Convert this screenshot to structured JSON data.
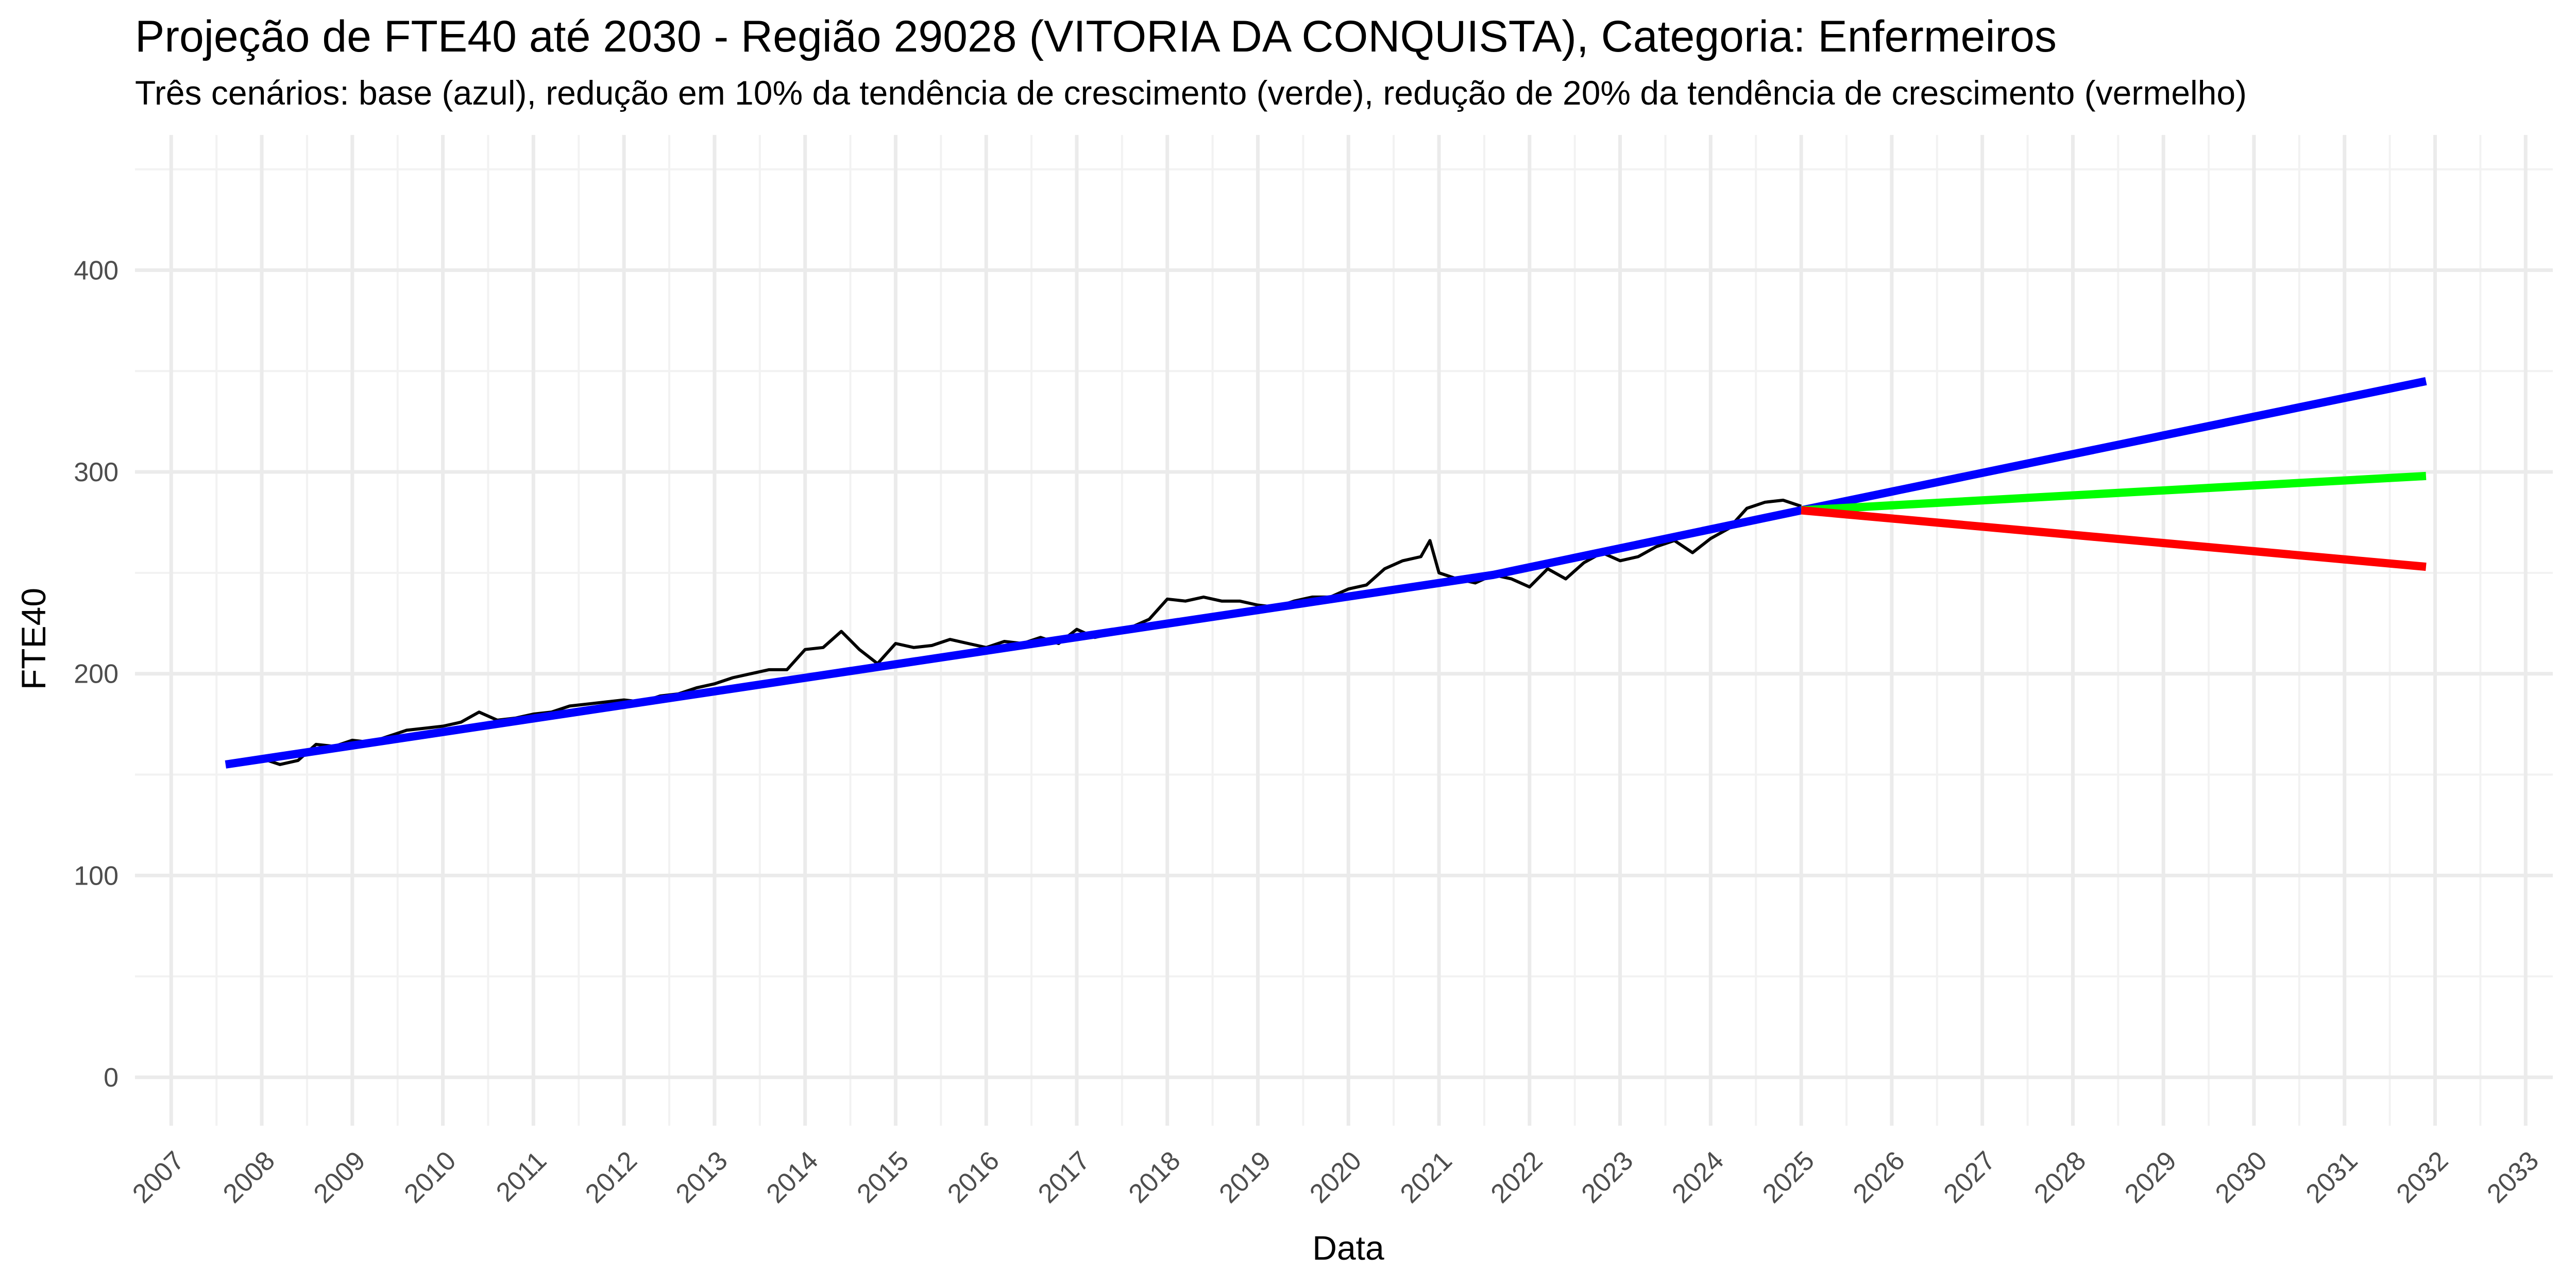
{
  "chart_data": {
    "type": "line",
    "title": "Projeção de FTE40 até 2030 - Região 29028 (VITORIA DA CONQUISTA), Categoria: Enfermeiros",
    "subtitle": "Três cenários: base (azul), redução em 10% da tendência de crescimento (verde), redução de 20% da tendência de crescimento (vermelho)",
    "xlabel": "Data",
    "ylabel": "FTE40",
    "xlim": [
      2006.6,
      2033.3
    ],
    "ylim": [
      -24,
      467
    ],
    "y_ticks": [
      0,
      100,
      200,
      300,
      400
    ],
    "x_ticks": [
      "2007",
      "2008",
      "2009",
      "2010",
      "2011",
      "2012",
      "2013",
      "2014",
      "2015",
      "2016",
      "2017",
      "2018",
      "2019",
      "2020",
      "2021",
      "2022",
      "2023",
      "2024",
      "2025",
      "2026",
      "2027",
      "2028",
      "2029",
      "2030",
      "2031",
      "2032",
      "2033"
    ],
    "grid": true,
    "legend": "none",
    "series": [
      {
        "color": "#000000",
        "x": [
          2008.0,
          2008.2,
          2008.4,
          2008.6,
          2008.8,
          2009.0,
          2009.2,
          2009.4,
          2009.6,
          2009.8,
          2010.0,
          2010.2,
          2010.4,
          2010.6,
          2010.8,
          2011.0,
          2011.2,
          2011.4,
          2011.6,
          2011.8,
          2012.0,
          2012.2,
          2012.4,
          2012.6,
          2012.8,
          2013.0,
          2013.2,
          2013.4,
          2013.6,
          2013.8,
          2014.0,
          2014.2,
          2014.4,
          2014.6,
          2014.8,
          2015.0,
          2015.2,
          2015.4,
          2015.6,
          2015.8,
          2016.0,
          2016.2,
          2016.4,
          2016.6,
          2016.8,
          2017.0,
          2017.2,
          2017.4,
          2017.6,
          2017.8,
          2018.0,
          2018.2,
          2018.4,
          2018.6,
          2018.8,
          2019.0,
          2019.2,
          2019.4,
          2019.6,
          2019.8,
          2020.0,
          2020.2,
          2020.4,
          2020.6,
          2020.8,
          2020.9,
          2021.0,
          2021.2,
          2021.4,
          2021.6,
          2021.8,
          2022.0,
          2022.2,
          2022.4,
          2022.6,
          2022.8,
          2023.0,
          2023.2,
          2023.4,
          2023.6,
          2023.8,
          2024.0,
          2024.2,
          2024.4,
          2024.6,
          2024.8,
          2025.0
        ],
        "values": [
          158,
          155,
          157,
          165,
          164,
          167,
          166,
          169,
          172,
          173,
          174,
          176,
          181,
          177,
          178,
          180,
          181,
          184,
          185,
          186,
          187,
          186,
          189,
          190,
          193,
          195,
          198,
          200,
          202,
          202,
          212,
          213,
          221,
          212,
          205,
          215,
          213,
          214,
          217,
          215,
          213,
          216,
          215,
          218,
          215,
          222,
          218,
          220,
          223,
          227,
          237,
          236,
          238,
          236,
          236,
          234,
          233,
          236,
          238,
          238,
          242,
          244,
          252,
          256,
          258,
          266,
          250,
          247,
          245,
          249,
          247,
          243,
          252,
          247,
          255,
          260,
          256,
          258,
          263,
          266,
          260,
          267,
          272,
          282,
          285,
          286,
          283
        ]
      },
      {
        "color": "#0000ff",
        "x": [
          2007.6,
          2021.6,
          2025.0,
          2031.9
        ],
        "values": [
          155,
          249,
          281,
          345
        ]
      },
      {
        "color": "#00ff00",
        "x": [
          2025.0,
          2031.9
        ],
        "values": [
          281,
          298
        ]
      },
      {
        "color": "#ff0000",
        "x": [
          2025.0,
          2031.9
        ],
        "values": [
          281,
          253
        ]
      }
    ]
  }
}
